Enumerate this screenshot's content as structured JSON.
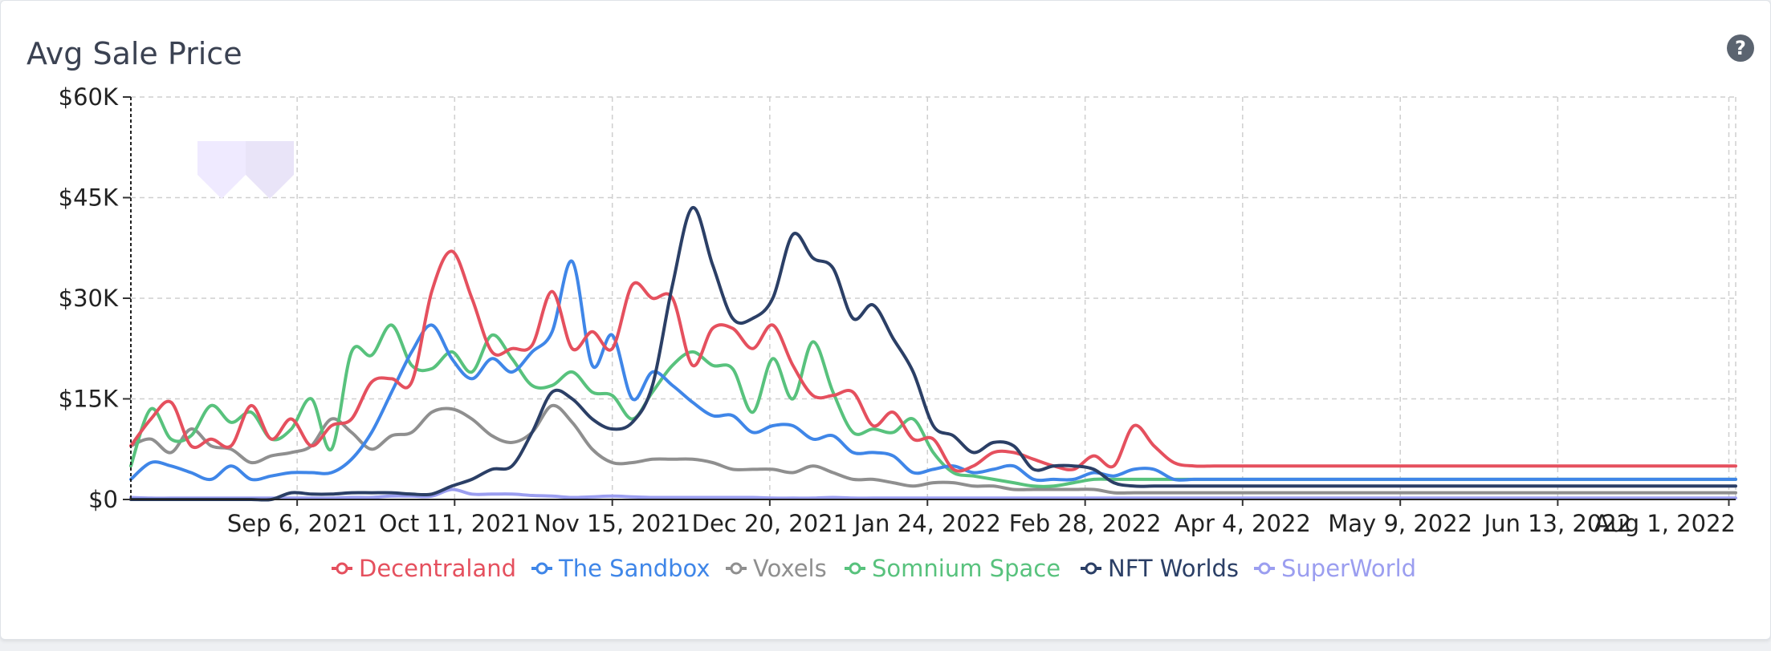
{
  "card": {
    "title": "Avg Sale Price",
    "help_icon": "question-circle-icon"
  },
  "watermark_icon": "brand-logo-icon",
  "chart_data": {
    "type": "line",
    "title": "Avg Sale Price",
    "xlabel": "",
    "ylabel": "",
    "ylim": [
      0,
      60000
    ],
    "y_ticks": [
      {
        "value": 0,
        "label": "$0"
      },
      {
        "value": 15000,
        "label": "$15K"
      },
      {
        "value": 30000,
        "label": "$30K"
      },
      {
        "value": 45000,
        "label": "$45K"
      },
      {
        "value": 60000,
        "label": "$60K"
      }
    ],
    "x_ticks": [
      "Sep 6, 2021",
      "Oct 11, 2021",
      "Nov 15, 2021",
      "Dec 20, 2021",
      "Jan 24, 2022",
      "Feb 28, 2022",
      "Apr 4, 2022",
      "May 9, 2022",
      "Jun 13, 2022",
      "Aug 1, 2022"
    ],
    "grid": true,
    "legend_position": "bottom-center",
    "x": [
      "Aug 9",
      "Aug 13",
      "Aug 18",
      "Aug 22",
      "Aug 27",
      "Aug 31",
      "Sep 5",
      "Sep 10",
      "Sep 14",
      "Sep 19",
      "Sep 23",
      "Sep 28",
      "Oct 2",
      "Oct 7",
      "Oct 11",
      "Oct 16",
      "Oct 20",
      "Oct 25",
      "Oct 29",
      "Nov 3",
      "Nov 7",
      "Nov 12",
      "Nov 16",
      "Nov 21",
      "Nov 25",
      "Nov 30",
      "Dec 4",
      "Dec 9",
      "Dec 13",
      "Dec 18",
      "Dec 22",
      "Dec 27",
      "Dec 31",
      "Jan 5",
      "Jan 9",
      "Jan 14",
      "Jan 18",
      "Jan 23",
      "Jan 27",
      "Feb 1",
      "Feb 5",
      "Feb 10",
      "Feb 14",
      "Feb 19",
      "Feb 23",
      "Feb 28",
      "Mar 4",
      "Mar 9",
      "Mar 13",
      "Mar 18",
      "Mar 22",
      "Mar 27",
      "Mar 31",
      "Apr 5",
      "Apr 9",
      "Apr 14",
      "Apr 18",
      "Apr 23",
      "Apr 27",
      "May 2",
      "May 6",
      "May 11",
      "May 15",
      "May 20",
      "May 24",
      "May 29",
      "Jun 2",
      "Jun 7",
      "Jun 11",
      "Jun 16",
      "Jun 20",
      "Jun 25",
      "Jun 29",
      "Jul 4",
      "Jul 8",
      "Jul 13",
      "Jul 17",
      "Jul 22",
      "Jul 26",
      "Jul 31",
      "Aug 4"
    ],
    "series": [
      {
        "name": "Decentraland",
        "color": "#e5505e",
        "values": [
          8000,
          12000,
          14500,
          8000,
          9000,
          8000,
          14000,
          9000,
          12000,
          8000,
          11000,
          12000,
          17500,
          18000,
          17500,
          31000,
          37000,
          30000,
          22000,
          22500,
          23000,
          31000,
          22500,
          25000,
          22500,
          32000,
          30000,
          30000,
          20000,
          25500,
          25500,
          22500,
          26000,
          20000,
          15500,
          15500,
          16000,
          11000,
          13000,
          9000,
          9000,
          4500,
          5000,
          7000,
          7000,
          6000,
          5000,
          4500,
          6500,
          5000,
          11000,
          8000,
          5500,
          5000,
          5000,
          5000,
          5000,
          5000,
          5000,
          5000,
          5000,
          5000,
          5000,
          5000,
          5000,
          5000,
          5000,
          5000,
          5000,
          5000,
          5000,
          5000,
          5000,
          5000,
          5000,
          5000,
          5000,
          5000,
          5000,
          5000,
          5000
        ]
      },
      {
        "name": "The Sandbox",
        "color": "#3f86e8",
        "values": [
          3000,
          5500,
          5000,
          4000,
          3000,
          5000,
          3000,
          3500,
          4000,
          4000,
          4000,
          6000,
          10000,
          16000,
          22000,
          26000,
          21000,
          18000,
          21000,
          19000,
          22000,
          25000,
          35500,
          20000,
          24500,
          15000,
          19000,
          17000,
          14500,
          12500,
          12500,
          10000,
          11000,
          11000,
          9000,
          9500,
          7000,
          7000,
          6500,
          4000,
          4500,
          5000,
          4000,
          4500,
          5000,
          3000,
          3000,
          3000,
          4000,
          3500,
          4500,
          4500,
          3000,
          3000,
          3000,
          3000,
          3000,
          3000,
          3000,
          3000,
          3000,
          3000,
          3000,
          3000,
          3000,
          3000,
          3000,
          3000,
          3000,
          3000,
          3000,
          3000,
          3000,
          3000,
          3000,
          3000,
          3000,
          3000,
          3000,
          3000,
          3000
        ]
      },
      {
        "name": "Voxels",
        "color": "#8f8f8f",
        "values": [
          8000,
          9000,
          7000,
          10500,
          8000,
          7500,
          5500,
          6500,
          7000,
          8000,
          12000,
          10000,
          7500,
          9500,
          10000,
          13000,
          13500,
          12000,
          9500,
          8500,
          10000,
          14000,
          11500,
          7500,
          5500,
          5500,
          6000,
          6000,
          6000,
          5500,
          4500,
          4500,
          4500,
          4000,
          5000,
          4000,
          3000,
          3000,
          2500,
          2000,
          2500,
          2500,
          2000,
          2000,
          1500,
          1500,
          1500,
          1500,
          1500,
          1000,
          1000,
          1000,
          1000,
          1000,
          1000,
          1000,
          1000,
          1000,
          1000,
          1000,
          1000,
          1000,
          1000,
          1000,
          1000,
          1000,
          1000,
          1000,
          1000,
          1000,
          1000,
          1000,
          1000,
          1000,
          1000,
          1000,
          1000,
          1000,
          1000,
          1000,
          1000
        ]
      },
      {
        "name": "Somnium Space",
        "color": "#58c27d",
        "values": [
          5000,
          13500,
          9000,
          9500,
          14000,
          11500,
          13000,
          9000,
          10500,
          15000,
          7500,
          22000,
          21500,
          26000,
          20000,
          19500,
          22000,
          19000,
          24500,
          21000,
          17000,
          17000,
          19000,
          16000,
          15500,
          12000,
          16000,
          20000,
          22000,
          20000,
          19500,
          13000,
          21000,
          15000,
          23500,
          16000,
          10000,
          10500,
          10000,
          12000,
          7000,
          4000,
          3500,
          3000,
          2500,
          2000,
          2000,
          2500,
          3000,
          3000,
          3000,
          3000,
          3000,
          3000,
          3000,
          3000,
          3000,
          3000,
          3000,
          3000,
          3000,
          3000,
          3000,
          3000,
          3000,
          3000,
          3000,
          3000,
          3000,
          3000,
          3000,
          3000,
          3000,
          3000,
          3000,
          3000,
          3000,
          3000,
          3000,
          3000,
          3000
        ]
      },
      {
        "name": "NFT Worlds",
        "color": "#2b3f66",
        "values": [
          0,
          0,
          0,
          0,
          0,
          0,
          0,
          0,
          1000,
          800,
          800,
          1000,
          1000,
          1000,
          800,
          800,
          2000,
          3000,
          4500,
          5000,
          10000,
          16000,
          15000,
          12000,
          10500,
          11500,
          17000,
          32000,
          43500,
          35000,
          27000,
          27000,
          30000,
          39500,
          36000,
          34500,
          27000,
          29000,
          24000,
          19000,
          11000,
          9500,
          7000,
          8500,
          8000,
          4500,
          5000,
          5000,
          4500,
          2500,
          2000,
          2000,
          2000,
          2000,
          2000,
          2000,
          2000,
          2000,
          2000,
          2000,
          2000,
          2000,
          2000,
          2000,
          2000,
          2000,
          2000,
          2000,
          2000,
          2000,
          2000,
          2000,
          2000,
          2000,
          2000,
          2000,
          2000,
          2000,
          2000,
          2000,
          2000
        ]
      },
      {
        "name": "SuperWorld",
        "color": "#9b9ef0",
        "values": [
          300,
          200,
          200,
          200,
          200,
          200,
          200,
          200,
          200,
          200,
          200,
          300,
          300,
          500,
          500,
          500,
          1500,
          800,
          800,
          800,
          600,
          500,
          300,
          400,
          500,
          400,
          300,
          300,
          300,
          300,
          300,
          300,
          200,
          200,
          200,
          300,
          200,
          200,
          200,
          200,
          200,
          200,
          200,
          200,
          200,
          200,
          200,
          200,
          200,
          200,
          200,
          200,
          200,
          200,
          200,
          200,
          200,
          200,
          200,
          200,
          200,
          200,
          200,
          200,
          200,
          200,
          200,
          200,
          200,
          200,
          200,
          200,
          200,
          200,
          200,
          200,
          200,
          200,
          200,
          200,
          200
        ]
      }
    ]
  }
}
